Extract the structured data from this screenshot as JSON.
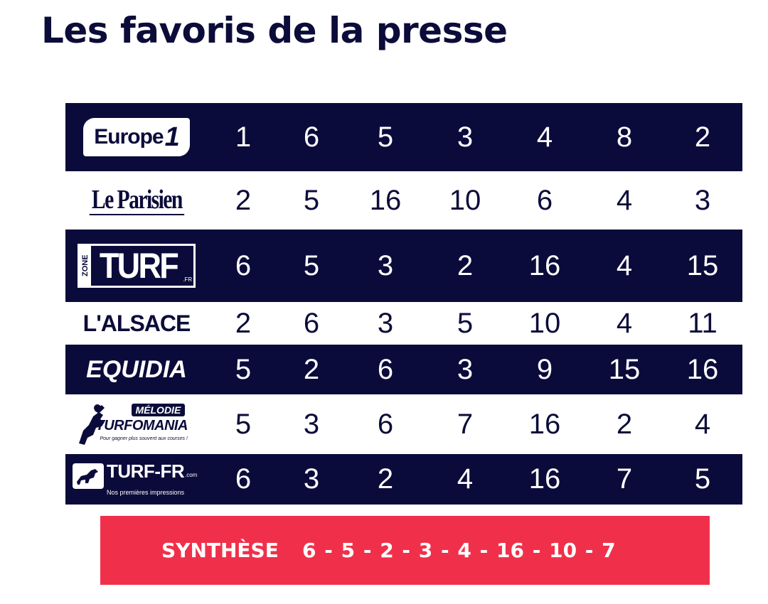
{
  "title": "Les favoris de la presse",
  "sources": [
    {
      "id": "europe1",
      "logo_text": "Europe",
      "logo_text_suffix": "1",
      "style": "dark",
      "picks": [
        "1",
        "6",
        "5",
        "3",
        "4",
        "8",
        "2"
      ]
    },
    {
      "id": "le-parisien",
      "logo_text": "Le Parisien",
      "style": "light",
      "picks": [
        "2",
        "5",
        "16",
        "10",
        "6",
        "4",
        "3"
      ]
    },
    {
      "id": "zone-turf",
      "logo_text": "TURF",
      "logo_prefix": "ZONE",
      "logo_suffix": ".FR",
      "style": "dark",
      "picks": [
        "6",
        "5",
        "3",
        "2",
        "16",
        "4",
        "15"
      ]
    },
    {
      "id": "l-alsace",
      "logo_text": "L'ALSACE",
      "style": "light",
      "picks": [
        "2",
        "6",
        "3",
        "5",
        "10",
        "4",
        "11"
      ]
    },
    {
      "id": "equidia",
      "logo_text": "EQUIDIA",
      "style": "dark",
      "picks": [
        "5",
        "2",
        "6",
        "3",
        "9",
        "15",
        "16"
      ]
    },
    {
      "id": "melodie-turfomania",
      "logo_text": "TURFOMANIA",
      "logo_badge": "MÉLODIE",
      "logo_slogan": "Pour gagner plus souvent aux courses !",
      "style": "light",
      "picks": [
        "5",
        "3",
        "6",
        "7",
        "16",
        "2",
        "4"
      ]
    },
    {
      "id": "turf-fr",
      "logo_text": "TURF-FR",
      "logo_suffix": ".com",
      "logo_tagline": "Nos premières impressions",
      "style": "dark",
      "picks": [
        "6",
        "3",
        "2",
        "4",
        "16",
        "7",
        "5"
      ]
    }
  ],
  "synthese": {
    "label": "SYNTHÈSE",
    "sequence": "6 - 5 - 2 - 3 - 4 - 16 - 10 - 7"
  },
  "colors": {
    "navy": "#0b0b3b",
    "red": "#f0304a",
    "white": "#ffffff"
  }
}
